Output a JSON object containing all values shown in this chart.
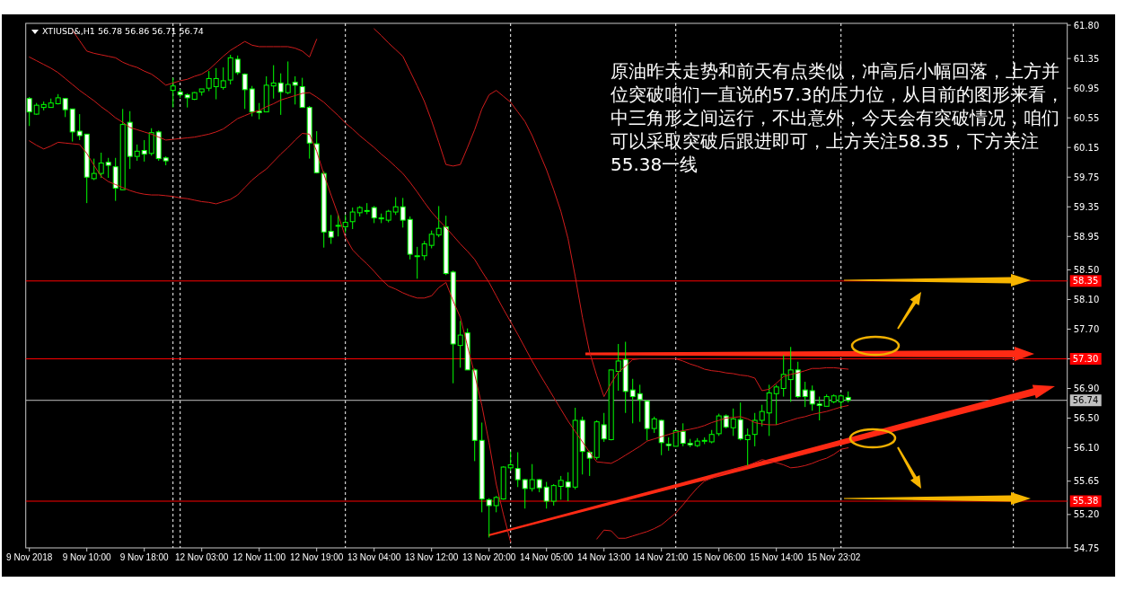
{
  "chart_data": {
    "type": "candlestick",
    "title": "XTIUSD&,H1 56.78 56.86 56.71 56.74",
    "color": "#00ff00",
    "categories": [
      "9 Nov 2018",
      null,
      null,
      null,
      null,
      null,
      null,
      null,
      "9 Nov 10:00",
      null,
      null,
      null,
      null,
      null,
      null,
      null,
      "9 Nov 18:00",
      null,
      null,
      null,
      null,
      null,
      null,
      null,
      "12 Nov 03:00",
      null,
      null,
      null,
      null,
      null,
      null,
      null,
      "12 Nov 11:00",
      null,
      null,
      null,
      null,
      null,
      null,
      null,
      "12 Nov 19:00",
      null,
      null,
      null,
      null,
      null,
      null,
      null,
      "13 Nov 04:00",
      null,
      null,
      null,
      null,
      null,
      null,
      null,
      "13 Nov 12:00",
      null,
      null,
      null,
      null,
      null,
      null,
      null,
      "13 Nov 20:00",
      null,
      null,
      null,
      null,
      null,
      null,
      null,
      "14 Nov 05:00",
      null,
      null,
      null,
      null,
      null,
      null,
      null,
      "14 Nov 13:00",
      null,
      null,
      null,
      null,
      null,
      null,
      null,
      "14 Nov 21:00",
      null,
      null,
      null,
      null,
      null,
      null,
      null,
      "15 Nov 06:00",
      null,
      null,
      null,
      null,
      null,
      null,
      null,
      "15 Nov 14:00",
      null,
      null,
      null,
      null,
      null,
      null,
      null,
      "15 Nov 23:02",
      null,
      null,
      null,
      null,
      null,
      null,
      null,
      null,
      null,
      null,
      null,
      null,
      null,
      null,
      null,
      null,
      null,
      null,
      null,
      null,
      null,
      null,
      null,
      null,
      null,
      null,
      null,
      null,
      null,
      null,
      null,
      null
    ],
    "ohlc": [
      [
        60.81,
        60.83,
        60.44,
        60.63
      ],
      [
        60.6,
        60.75,
        60.59,
        60.72
      ],
      [
        60.69,
        60.77,
        60.65,
        60.73
      ],
      [
        60.69,
        60.81,
        60.69,
        60.75
      ],
      [
        60.74,
        60.87,
        60.73,
        60.82
      ],
      [
        60.81,
        60.81,
        60.56,
        60.66
      ],
      [
        60.67,
        60.67,
        60.23,
        60.36
      ],
      [
        60.37,
        60.6,
        60.25,
        60.31
      ],
      [
        60.33,
        60.33,
        59.4,
        59.75
      ],
      [
        59.73,
        60.0,
        59.71,
        59.8
      ],
      [
        59.8,
        60.08,
        59.74,
        59.94
      ],
      [
        59.95,
        60.01,
        59.74,
        59.91
      ],
      [
        59.89,
        60.01,
        59.43,
        59.6
      ],
      [
        59.58,
        60.67,
        59.58,
        60.46
      ],
      [
        60.49,
        60.64,
        59.86,
        60.03
      ],
      [
        60.03,
        60.19,
        59.97,
        60.1
      ],
      [
        60.11,
        60.25,
        59.96,
        60.06
      ],
      [
        60.07,
        60.41,
        60.04,
        60.35
      ],
      [
        60.36,
        60.38,
        59.97,
        60.0
      ],
      [
        60.01,
        60.03,
        59.91,
        59.97
      ],
      [
        60.92,
        61.09,
        60.69,
        60.98
      ],
      [
        60.9,
        60.94,
        60.82,
        60.86
      ],
      [
        60.86,
        60.88,
        60.69,
        60.82
      ],
      [
        60.8,
        60.9,
        60.79,
        60.89
      ],
      [
        60.9,
        60.94,
        60.85,
        60.94
      ],
      [
        60.95,
        61.18,
        60.91,
        61.08
      ],
      [
        60.97,
        61.22,
        60.8,
        61.08
      ],
      [
        60.96,
        61.23,
        60.93,
        61.05
      ],
      [
        61.06,
        61.4,
        61.0,
        61.36
      ],
      [
        61.34,
        61.39,
        61.13,
        61.16
      ],
      [
        61.14,
        61.15,
        60.67,
        60.93
      ],
      [
        60.94,
        60.98,
        60.57,
        60.63
      ],
      [
        60.64,
        60.75,
        60.53,
        60.62
      ],
      [
        60.63,
        61.11,
        60.63,
        60.99
      ],
      [
        60.98,
        61.26,
        60.81,
        61.02
      ],
      [
        61.02,
        61.15,
        60.59,
        60.9
      ],
      [
        60.89,
        61.31,
        60.87,
        61.0
      ],
      [
        61.03,
        61.11,
        60.73,
        60.99
      ],
      [
        60.97,
        61.09,
        60.69,
        60.69
      ],
      [
        60.69,
        60.71,
        60.0,
        60.21
      ],
      [
        60.2,
        60.37,
        59.8,
        59.81
      ],
      [
        59.8,
        59.83,
        58.8,
        59.01
      ],
      [
        59.02,
        59.24,
        58.85,
        58.94
      ],
      [
        59.09,
        59.24,
        58.95,
        59.1
      ],
      [
        59.08,
        59.24,
        59.0,
        59.14
      ],
      [
        59.15,
        59.34,
        59.05,
        59.28
      ],
      [
        59.27,
        59.36,
        59.22,
        59.34
      ],
      [
        59.3,
        59.4,
        59.25,
        59.3
      ],
      [
        59.34,
        59.36,
        59.13,
        59.2
      ],
      [
        59.2,
        59.26,
        59.13,
        59.2
      ],
      [
        59.17,
        59.31,
        59.14,
        59.29
      ],
      [
        59.28,
        59.48,
        59.24,
        59.35
      ],
      [
        59.35,
        59.47,
        59.07,
        59.17
      ],
      [
        59.18,
        59.22,
        58.64,
        58.71
      ],
      [
        58.69,
        58.81,
        58.38,
        58.69
      ],
      [
        58.69,
        58.89,
        58.63,
        58.85
      ],
      [
        58.83,
        59.03,
        58.79,
        58.98
      ],
      [
        58.97,
        59.36,
        58.94,
        59.06
      ],
      [
        59.08,
        59.23,
        58.43,
        58.45
      ],
      [
        58.47,
        58.49,
        56.97,
        57.5
      ],
      [
        57.48,
        57.81,
        57.18,
        57.62
      ],
      [
        57.65,
        57.71,
        57.15,
        57.15
      ],
      [
        57.15,
        57.17,
        55.92,
        56.2
      ],
      [
        56.2,
        56.44,
        55.23,
        55.41
      ],
      [
        55.4,
        55.42,
        54.89,
        55.32
      ],
      [
        55.32,
        55.45,
        55.23,
        55.43
      ],
      [
        55.41,
        55.85,
        55.4,
        55.84
      ],
      [
        55.83,
        56.05,
        55.79,
        55.87
      ],
      [
        55.82,
        56.04,
        55.57,
        55.67
      ],
      [
        55.67,
        55.68,
        55.28,
        55.55
      ],
      [
        55.55,
        55.88,
        55.51,
        55.67
      ],
      [
        55.67,
        55.68,
        55.5,
        55.56
      ],
      [
        55.57,
        55.64,
        55.28,
        55.38
      ],
      [
        55.38,
        55.61,
        55.32,
        55.59
      ],
      [
        55.58,
        55.72,
        55.4,
        55.66
      ],
      [
        55.64,
        55.77,
        55.38,
        55.57
      ],
      [
        55.57,
        56.64,
        55.54,
        56.47
      ],
      [
        56.47,
        56.52,
        55.74,
        56.05
      ],
      [
        56.04,
        56.06,
        55.72,
        55.96
      ],
      [
        55.97,
        56.47,
        55.94,
        56.45
      ],
      [
        56.41,
        56.57,
        56.18,
        56.22
      ],
      [
        56.21,
        57.15,
        56.2,
        57.15
      ],
      [
        57.13,
        57.5,
        56.87,
        57.27
      ],
      [
        57.29,
        57.53,
        56.57,
        56.86
      ],
      [
        56.88,
        57.03,
        56.43,
        56.79
      ],
      [
        56.83,
        56.95,
        56.45,
        56.75
      ],
      [
        56.73,
        56.74,
        56.2,
        56.36
      ],
      [
        56.36,
        56.52,
        56.3,
        56.49
      ],
      [
        56.47,
        56.48,
        56.0,
        56.17
      ],
      [
        56.15,
        56.24,
        56.06,
        56.13
      ],
      [
        56.12,
        56.34,
        56.12,
        56.33
      ],
      [
        56.32,
        56.43,
        56.12,
        56.16
      ],
      [
        56.16,
        56.22,
        56.11,
        56.14
      ],
      [
        56.13,
        56.23,
        56.11,
        56.19
      ],
      [
        56.19,
        56.24,
        56.15,
        56.2
      ],
      [
        56.18,
        56.34,
        56.16,
        56.28
      ],
      [
        56.29,
        56.56,
        56.26,
        56.53
      ],
      [
        56.53,
        56.55,
        56.36,
        56.38
      ],
      [
        56.37,
        56.63,
        56.26,
        56.49
      ],
      [
        56.48,
        56.71,
        56.2,
        56.22
      ],
      [
        56.21,
        56.36,
        55.85,
        56.27
      ],
      [
        56.28,
        56.57,
        56.12,
        56.47
      ],
      [
        56.47,
        56.68,
        56.39,
        56.59
      ],
      [
        56.57,
        56.95,
        56.26,
        56.84
      ],
      [
        56.83,
        56.95,
        56.41,
        56.92
      ],
      [
        56.9,
        57.35,
        56.79,
        57.09
      ],
      [
        57.02,
        57.46,
        56.72,
        57.15
      ],
      [
        57.15,
        57.26,
        56.77,
        56.79
      ],
      [
        56.88,
        56.99,
        56.65,
        56.79
      ],
      [
        56.87,
        56.94,
        56.6,
        56.69
      ],
      [
        56.69,
        56.79,
        56.47,
        56.67
      ],
      [
        56.66,
        56.82,
        56.66,
        56.79
      ],
      [
        56.72,
        56.82,
        56.7,
        56.8
      ],
      [
        56.72,
        56.82,
        56.63,
        56.8
      ],
      [
        56.78,
        56.86,
        56.71,
        56.74
      ],
      null,
      null,
      null,
      null,
      null,
      null,
      null,
      null,
      null,
      null,
      null,
      null,
      null,
      null,
      null,
      null,
      null,
      null,
      null,
      null,
      null,
      null,
      null,
      null,
      null,
      null,
      null,
      null,
      null,
      null
    ],
    "series": [
      {
        "type": "line",
        "color": "#d01c1c",
        "values": [
          null,
          null,
          null,
          null,
          null,
          null,
          61.73,
          61.59,
          61.45,
          61.42,
          61.4,
          61.38,
          61.36,
          61.3,
          61.26,
          61.23,
          61.18,
          61.14,
          61.07,
          60.99,
          61.02,
          61.05,
          61.07,
          61.11,
          61.14,
          61.2,
          61.29,
          61.38,
          61.46,
          61.52,
          61.58,
          61.53,
          61.51,
          61.51,
          61.51,
          61.51,
          61.51,
          61.49,
          61.45,
          61.37,
          61.61,
          null,
          null,
          null,
          null,
          null,
          null,
          null,
          61.75,
          61.66,
          61.56,
          61.47,
          61.38,
          61.18,
          60.98,
          60.77,
          60.51,
          60.22,
          59.92,
          59.9,
          59.92,
          60.15,
          60.39,
          60.67,
          60.86,
          60.92,
          60.84,
          60.76,
          60.63,
          60.5,
          60.31,
          60.08,
          59.85,
          59.58,
          59.29,
          58.92,
          58.41,
          57.86,
          57.39,
          57.07,
          56.79,
          56.97,
          57.12,
          57.2,
          57.29,
          57.3,
          57.3,
          57.3,
          57.3,
          57.3,
          57.3,
          57.27,
          57.23,
          57.2,
          57.16,
          57.14,
          57.13,
          57.11,
          57.1,
          57.08,
          57.07,
          57.04,
          56.87,
          56.89,
          56.97,
          57.06,
          57.09,
          57.11,
          57.14,
          57.17,
          57.17,
          57.18,
          57.18,
          57.17,
          57.16,
          null,
          null,
          null,
          null,
          null,
          null,
          null,
          null,
          null,
          null,
          null,
          null,
          null,
          null,
          null,
          null,
          null,
          null,
          null,
          null,
          null,
          null,
          null,
          null,
          null,
          null,
          null,
          null,
          null,
          null
        ]
      },
      {
        "type": "line",
        "color": "#d01c1c",
        "values": [
          61.37,
          61.32,
          61.27,
          61.22,
          61.16,
          61.08,
          61.0,
          60.92,
          60.85,
          60.78,
          60.7,
          60.63,
          60.55,
          60.49,
          60.42,
          60.39,
          60.36,
          60.33,
          60.29,
          60.25,
          60.26,
          60.27,
          60.28,
          60.29,
          60.31,
          60.33,
          60.36,
          60.4,
          60.47,
          60.54,
          60.58,
          60.62,
          60.65,
          60.7,
          60.74,
          60.79,
          60.82,
          60.85,
          60.88,
          60.89,
          60.83,
          60.76,
          60.67,
          60.58,
          60.48,
          60.4,
          60.31,
          60.23,
          60.15,
          60.06,
          59.98,
          59.89,
          59.8,
          59.68,
          59.55,
          59.41,
          59.28,
          59.17,
          59.07,
          58.96,
          58.85,
          58.75,
          58.64,
          58.48,
          58.33,
          58.15,
          57.97,
          57.8,
          57.63,
          57.45,
          57.27,
          57.1,
          56.94,
          56.78,
          56.62,
          56.46,
          56.32,
          56.18,
          56.04,
          55.91,
          55.9,
          55.89,
          55.94,
          56.0,
          56.06,
          56.12,
          56.19,
          56.22,
          56.25,
          56.28,
          56.31,
          56.33,
          56.35,
          56.37,
          56.4,
          56.44,
          56.47,
          56.5,
          56.51,
          56.52,
          56.49,
          56.44,
          56.42,
          56.41,
          56.41,
          56.44,
          56.47,
          56.5,
          56.52,
          56.55,
          56.57,
          56.59,
          56.62,
          56.65,
          56.67,
          null,
          null,
          null,
          null,
          null,
          null,
          null,
          null,
          null,
          null,
          null,
          null,
          null,
          null,
          null,
          null,
          null,
          null,
          null,
          null,
          null,
          null,
          null,
          null,
          null,
          null,
          null,
          null,
          null,
          null
        ]
      },
      {
        "type": "line",
        "color": "#d01c1c",
        "values": [
          60.24,
          60.18,
          60.13,
          60.17,
          60.22,
          60.21,
          60.2,
          60.19,
          60.07,
          59.91,
          59.76,
          59.69,
          59.65,
          59.61,
          59.57,
          59.54,
          59.52,
          59.51,
          59.51,
          59.5,
          59.49,
          59.47,
          59.46,
          59.44,
          59.42,
          59.41,
          59.39,
          59.42,
          59.45,
          59.51,
          59.61,
          59.71,
          59.79,
          59.86,
          59.96,
          60.06,
          60.15,
          60.25,
          60.34,
          60.33,
          60.1,
          59.79,
          59.51,
          59.24,
          58.94,
          58.77,
          58.67,
          58.58,
          58.48,
          58.37,
          58.28,
          58.24,
          58.19,
          58.15,
          58.12,
          58.12,
          58.15,
          58.26,
          58.33,
          58.08,
          57.86,
          57.47,
          57.09,
          56.67,
          56.17,
          55.61,
          55.2,
          54.83,
          null,
          null,
          null,
          null,
          null,
          null,
          null,
          null,
          null,
          null,
          null,
          54.87,
          54.99,
          54.98,
          54.88,
          54.88,
          54.91,
          54.94,
          54.97,
          55.01,
          55.06,
          55.14,
          55.22,
          55.33,
          55.45,
          55.56,
          55.65,
          55.69,
          55.73,
          55.77,
          55.81,
          55.83,
          55.86,
          55.9,
          55.94,
          55.92,
          55.9,
          55.87,
          55.83,
          55.84,
          55.86,
          55.89,
          55.93,
          55.96,
          56.01,
          56.08,
          56.1,
          null,
          null,
          null,
          null,
          null,
          null,
          null,
          null,
          null,
          null,
          null,
          null,
          null,
          null,
          null,
          null,
          null,
          null,
          null,
          null,
          null,
          null,
          null,
          null,
          null,
          null,
          null,
          null,
          null,
          null
        ]
      }
    ],
    "ylim": [
      54.75,
      61.8
    ],
    "yticks": [
      {
        "value": 54.75,
        "label": "54.75"
      },
      {
        "value": 55.2,
        "label": "55.20"
      },
      {
        "value": 55.65,
        "label": "55.65"
      },
      {
        "value": 56.1,
        "label": "56.10"
      },
      {
        "value": 56.5,
        "label": "56.50"
      },
      {
        "value": 56.9,
        "label": "56.90"
      },
      {
        "value": 57.3,
        "label": null
      },
      {
        "value": 57.7,
        "label": "57.70"
      },
      {
        "value": 58.1,
        "label": "58.10"
      },
      {
        "value": 58.5,
        "label": "58.50"
      },
      {
        "value": 58.95,
        "label": "58.95"
      },
      {
        "value": 59.35,
        "label": "59.35"
      },
      {
        "value": 59.75,
        "label": "59.75"
      },
      {
        "value": 60.15,
        "label": "60.15"
      },
      {
        "value": 60.55,
        "label": "60.55"
      },
      {
        "value": 60.95,
        "label": "60.95"
      },
      {
        "value": 61.35,
        "label": "61.35"
      },
      {
        "value": 61.8,
        "label": "61.80"
      }
    ],
    "ref_lines": [
      {
        "axis": "y",
        "value": 58.35,
        "label": "58.35",
        "color": "#ff0000"
      },
      {
        "axis": "y",
        "value": 57.3,
        "label": "57.30",
        "color": "#ff0000"
      },
      {
        "axis": "y",
        "value": 56.74,
        "label": "56.74",
        "color": "#c0c0c0"
      },
      {
        "axis": "y",
        "value": 55.38,
        "label": "55.38",
        "color": "#ff0000"
      }
    ],
    "annotations": [
      "原油昨天走势和前天有点类似，冲高后小幅回落，上方并位突破咱们一直说的57.3的压力位，从目前的图形来看，中三角形之间运行，不出意外，今天会有突破情况，咱们可以采取突破后跟进即可，上方关注58.35，下方关注55.38一线"
    ]
  }
}
